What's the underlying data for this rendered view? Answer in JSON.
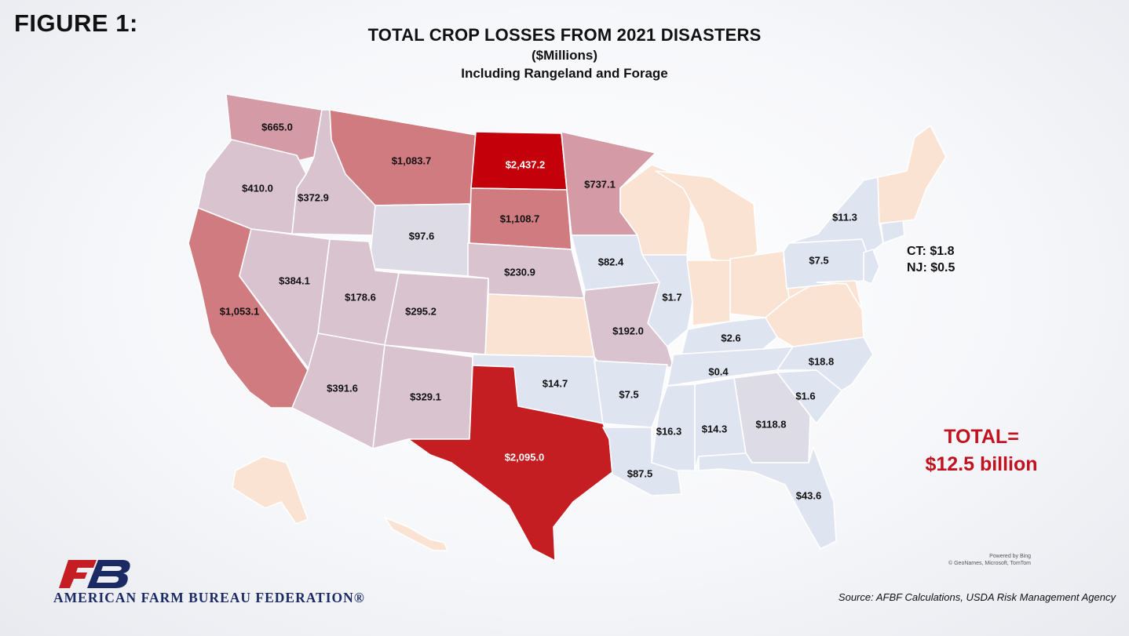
{
  "header": {
    "figure_label": "FIGURE 1:",
    "title": "TOTAL CROP LOSSES FROM 2021 DISASTERS",
    "subtitle": "($Millions)",
    "subtitle2": "Including Rangeland and Forage"
  },
  "states": [
    {
      "code": "WA",
      "label": "$665.0",
      "value": 665.0
    },
    {
      "code": "OR",
      "label": "$410.0",
      "value": 410.0
    },
    {
      "code": "CA",
      "label": "$1,053.1",
      "value": 1053.1
    },
    {
      "code": "ID",
      "label": "$372.9",
      "value": 372.9
    },
    {
      "code": "NV",
      "label": "$384.1",
      "value": 384.1
    },
    {
      "code": "MT",
      "label": "$1,083.7",
      "value": 1083.7
    },
    {
      "code": "WY",
      "label": "$97.6",
      "value": 97.6
    },
    {
      "code": "UT",
      "label": "$178.6",
      "value": 178.6
    },
    {
      "code": "AZ",
      "label": "$391.6",
      "value": 391.6
    },
    {
      "code": "CO",
      "label": "$295.2",
      "value": 295.2
    },
    {
      "code": "NM",
      "label": "$329.1",
      "value": 329.1
    },
    {
      "code": "ND",
      "label": "$2,437.2",
      "value": 2437.2
    },
    {
      "code": "SD",
      "label": "$1,108.7",
      "value": 1108.7
    },
    {
      "code": "NE",
      "label": "$230.9",
      "value": 230.9
    },
    {
      "code": "TX",
      "label": "$2,095.0",
      "value": 2095.0
    },
    {
      "code": "OK",
      "label": "$14.7",
      "value": 14.7
    },
    {
      "code": "MN",
      "label": "$737.1",
      "value": 737.1
    },
    {
      "code": "IA",
      "label": "$82.4",
      "value": 82.4
    },
    {
      "code": "MO",
      "label": "$192.0",
      "value": 192.0
    },
    {
      "code": "AR",
      "label": "$7.5",
      "value": 7.5
    },
    {
      "code": "LA",
      "label": "$87.5",
      "value": 87.5
    },
    {
      "code": "IL",
      "label": "$1.7",
      "value": 1.7
    },
    {
      "code": "KY",
      "label": "$2.6",
      "value": 2.6
    },
    {
      "code": "TN",
      "label": "$0.4",
      "value": 0.4
    },
    {
      "code": "MS",
      "label": "$16.3",
      "value": 16.3
    },
    {
      "code": "AL",
      "label": "$14.3",
      "value": 14.3
    },
    {
      "code": "GA",
      "label": "$118.8",
      "value": 118.8
    },
    {
      "code": "FL",
      "label": "$43.6",
      "value": 43.6
    },
    {
      "code": "SC",
      "label": "$1.6",
      "value": 1.6
    },
    {
      "code": "NC",
      "label": "$18.8",
      "value": 18.8
    },
    {
      "code": "PA",
      "label": "$7.5",
      "value": 7.5
    },
    {
      "code": "NY",
      "label": "$11.3",
      "value": 11.3
    }
  ],
  "annotations": {
    "ct": "CT: $1.8",
    "nj": "NJ: $0.5",
    "total_line1": "TOTAL=",
    "total_line2": "$12.5 billion"
  },
  "colors": {
    "very_high": "#c4000a",
    "high": "#c41e22",
    "mid_high": "#d07b80",
    "mid": "#d49ba6",
    "low_mid": "#d9c3cf",
    "low": "#dcdbe6",
    "minimal": "#dfe4f1",
    "no_data": "#fbe3d3",
    "total_text": "#c1121f",
    "logo_red": "#c41e22",
    "logo_navy": "#1b2a63"
  },
  "attribution": {
    "line1": "Powered by Bing",
    "line2": "© GeoNames, Microsoft, TomTom"
  },
  "footer": {
    "source": "Source: AFBF Calculations, USDA Risk Management Agency",
    "organization": "AMERICAN FARM BUREAU FEDERATION®"
  }
}
